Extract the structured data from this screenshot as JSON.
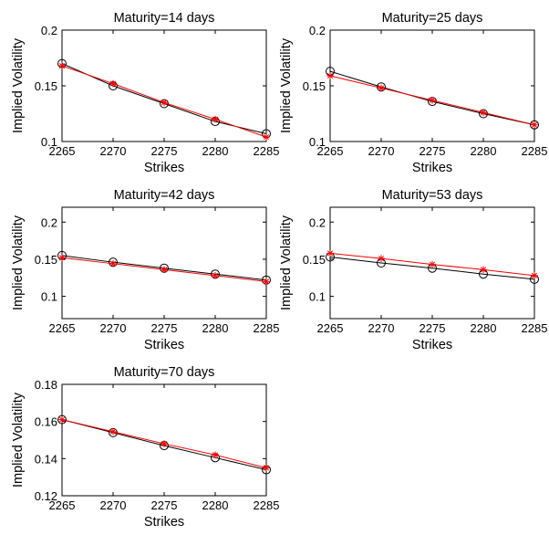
{
  "chart_data": [
    {
      "type": "line",
      "title": "Maturity=14 days",
      "xlabel": "Strikes",
      "ylabel": "Implied Volatility",
      "xlim": [
        2265,
        2285
      ],
      "ylim": [
        0.1,
        0.2
      ],
      "xticks": [
        "2265",
        "2270",
        "2275",
        "2280",
        "2285"
      ],
      "yticks": [
        "0.1",
        "0.15",
        "0.2"
      ],
      "x": [
        2265,
        2270,
        2275,
        2280,
        2285
      ],
      "series": [
        {
          "marker": "circle",
          "color": "#000000",
          "values": [
            0.17,
            0.15,
            0.134,
            0.118,
            0.107
          ]
        },
        {
          "marker": "star",
          "color": "#ff0000",
          "values": [
            0.168,
            0.152,
            0.135,
            0.12,
            0.104
          ]
        }
      ]
    },
    {
      "type": "line",
      "title": "Maturity=25 days",
      "xlabel": "Strikes",
      "ylabel": "Implied Volatility",
      "xlim": [
        2265,
        2285
      ],
      "ylim": [
        0.1,
        0.2
      ],
      "xticks": [
        "2265",
        "2270",
        "2275",
        "2280",
        "2285"
      ],
      "yticks": [
        "0.1",
        "0.15",
        "0.2"
      ],
      "x": [
        2265,
        2270,
        2275,
        2280,
        2285
      ],
      "series": [
        {
          "marker": "circle",
          "color": "#000000",
          "values": [
            0.163,
            0.149,
            0.136,
            0.125,
            0.115
          ]
        },
        {
          "marker": "star",
          "color": "#ff0000",
          "values": [
            0.159,
            0.148,
            0.137,
            0.126,
            0.115
          ]
        }
      ]
    },
    {
      "type": "line",
      "title": "Maturity=42 days",
      "xlabel": "Strikes",
      "ylabel": "Implied Volatility",
      "xlim": [
        2265,
        2285
      ],
      "ylim": [
        0.07,
        0.22
      ],
      "xticks": [
        "2265",
        "2270",
        "2275",
        "2280",
        "2285"
      ],
      "yticks": [
        "0.1",
        "0.15",
        "0.2"
      ],
      "x": [
        2265,
        2270,
        2275,
        2280,
        2285
      ],
      "series": [
        {
          "marker": "circle",
          "color": "#000000",
          "values": [
            0.155,
            0.146,
            0.138,
            0.13,
            0.122
          ]
        },
        {
          "marker": "star",
          "color": "#ff0000",
          "values": [
            0.152,
            0.144,
            0.136,
            0.128,
            0.12
          ]
        }
      ]
    },
    {
      "type": "line",
      "title": "Maturity=53 days",
      "xlabel": "Strikes",
      "ylabel": "Implied Volatility",
      "xlim": [
        2265,
        2285
      ],
      "ylim": [
        0.07,
        0.22
      ],
      "xticks": [
        "2265",
        "2270",
        "2275",
        "2280",
        "2285"
      ],
      "yticks": [
        "0.1",
        "0.15",
        "0.2"
      ],
      "x": [
        2265,
        2270,
        2275,
        2280,
        2285
      ],
      "series": [
        {
          "marker": "circle",
          "color": "#000000",
          "values": [
            0.153,
            0.145,
            0.138,
            0.13,
            0.123
          ]
        },
        {
          "marker": "star",
          "color": "#ff0000",
          "values": [
            0.158,
            0.151,
            0.143,
            0.136,
            0.128
          ]
        }
      ]
    },
    {
      "type": "line",
      "title": "Maturity=70 days",
      "xlabel": "Strikes",
      "ylabel": "Implied Volatility",
      "xlim": [
        2265,
        2285
      ],
      "ylim": [
        0.12,
        0.18
      ],
      "xticks": [
        "2265",
        "2270",
        "2275",
        "2280",
        "2285"
      ],
      "yticks": [
        "0.12",
        "0.14",
        "0.16",
        "0.18"
      ],
      "x": [
        2265,
        2270,
        2275,
        2280,
        2285
      ],
      "series": [
        {
          "marker": "circle",
          "color": "#000000",
          "values": [
            0.161,
            0.154,
            0.147,
            0.1405,
            0.134
          ]
        },
        {
          "marker": "star",
          "color": "#ff0000",
          "values": [
            0.161,
            0.1545,
            0.148,
            0.142,
            0.135
          ]
        }
      ]
    }
  ]
}
